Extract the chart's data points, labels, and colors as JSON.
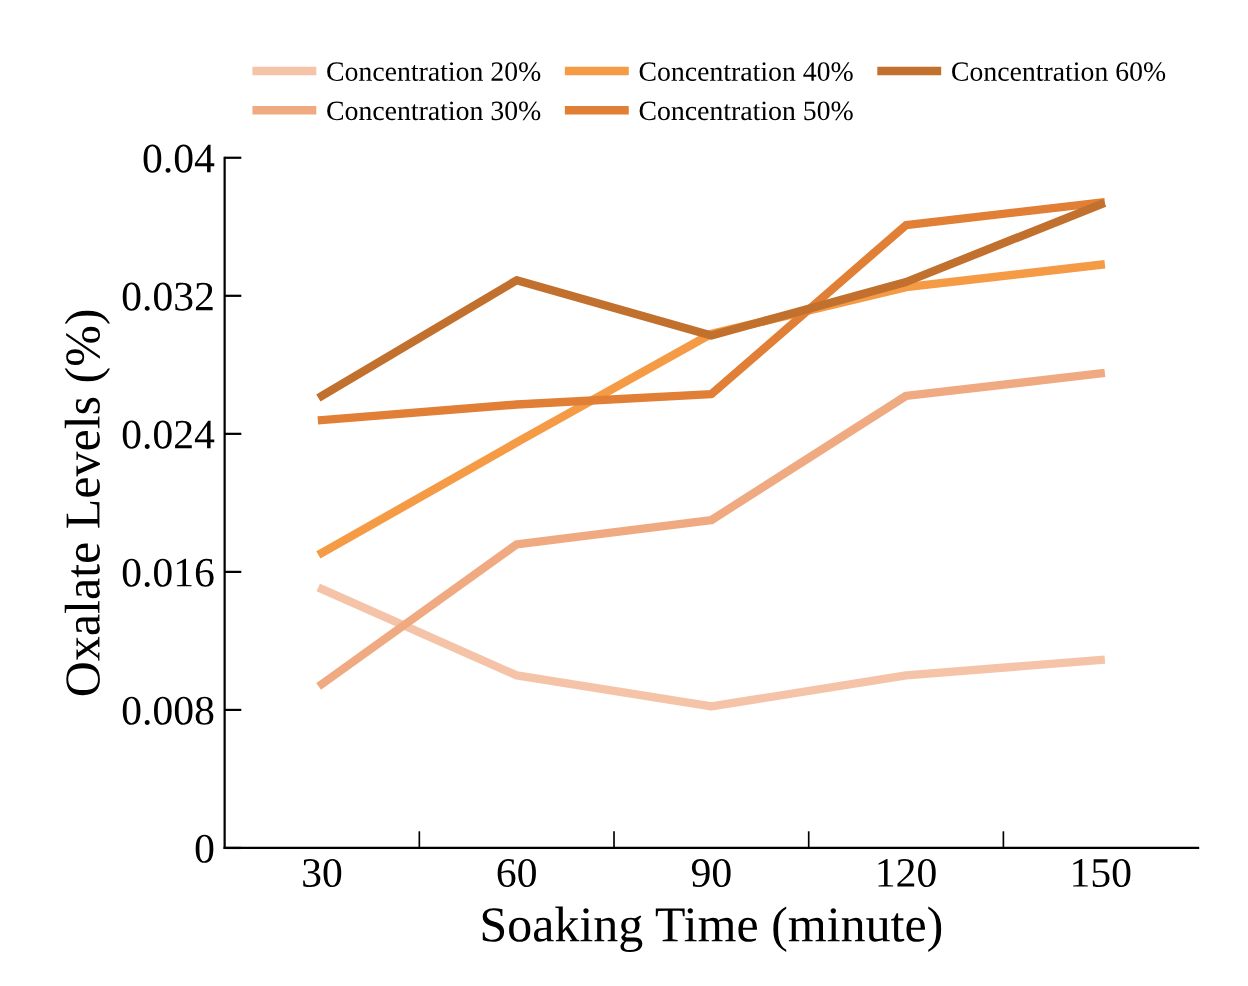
{
  "chart_data": {
    "type": "line",
    "xlabel": "Soaking Time (minute)",
    "ylabel": "Oxalate Levels (%)",
    "categories": [
      "30",
      "60",
      "90",
      "120",
      "150"
    ],
    "ylim": [
      0,
      0.04
    ],
    "yticks": [
      0,
      0.008,
      0.016,
      0.024,
      0.032,
      0.04
    ],
    "grid": false,
    "legend": "top",
    "marker": "none",
    "line_style": "solid",
    "series": [
      {
        "name": "Concentration 20%",
        "color": "#f5c4a8",
        "values": [
          0.015,
          0.01,
          0.0082,
          0.01,
          0.0109
        ]
      },
      {
        "name": "Concentration 30%",
        "color": "#f0aa82",
        "values": [
          0.0095,
          0.0176,
          0.019,
          0.0262,
          0.0275
        ]
      },
      {
        "name": "Concentration 40%",
        "color": "#f59a45",
        "values": [
          0.0171,
          0.0235,
          0.0298,
          0.0325,
          0.0338
        ]
      },
      {
        "name": "Concentration 50%",
        "color": "#e07f35",
        "values": [
          0.0248,
          0.0257,
          0.0263,
          0.0361,
          0.0374
        ]
      },
      {
        "name": "Concentration 60%",
        "color": "#c2702e",
        "values": [
          0.0262,
          0.0329,
          0.0297,
          0.0328,
          0.0373
        ]
      }
    ]
  }
}
